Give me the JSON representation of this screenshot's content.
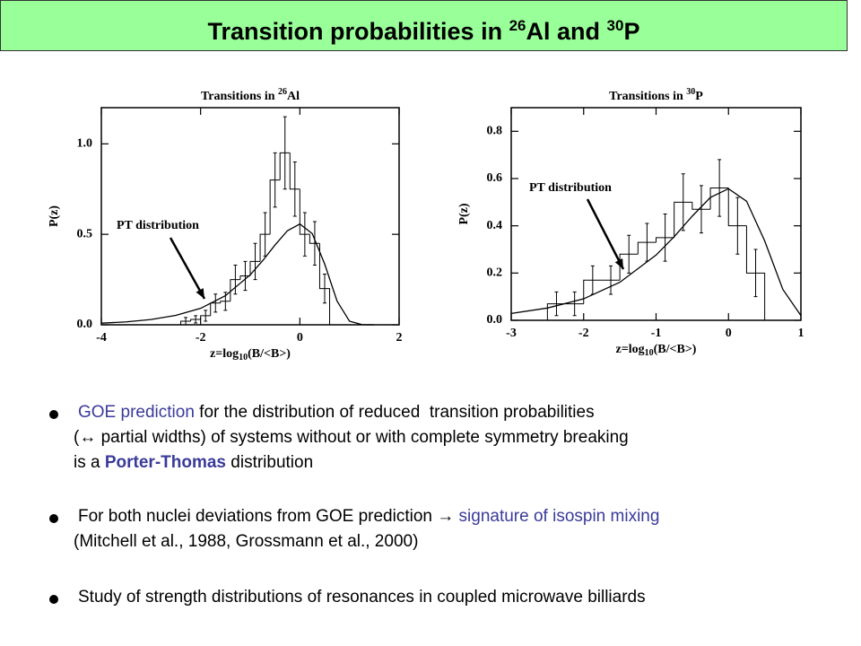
{
  "slide": {
    "title": [
      "Transition probabilities in ",
      "26",
      "Al and ",
      "30",
      "P"
    ],
    "bullets": [
      [
        [
          "GOE prediction",
          " for the distribution of reduced  transition probabilities"
        ],
        [
          "(↔ partial widths) of systems without or with complete symmetry breaking"
        ],
        [
          "is a ",
          "Porter-Thomas",
          " distribution"
        ]
      ],
      [
        [
          "For both nuclei deviations from GOE prediction → ",
          "signature of isospin mixing"
        ],
        [
          "(Mitchell et al., 1988, Grossmann et al., 2000)"
        ]
      ],
      [
        [
          "Study of strength distributions of resonances in coupled microwave billiards"
        ]
      ]
    ]
  },
  "chart_data": [
    {
      "type": "histogram",
      "title": "Transitions in ",
      "title_sup": "26",
      "title_suffix": "Al",
      "xlabel": "z=log",
      "xlabel_sub": "10",
      "xlabel_suffix": "(B/<B>)",
      "ylabel": "P(z)",
      "annotation": "PT distribution",
      "xlim": [
        -4,
        2
      ],
      "xticks": [
        -4,
        -2,
        0,
        2
      ],
      "ylim": [
        0,
        1.2
      ],
      "yticks": [
        {
          "value": 0,
          "label": "0.0"
        },
        {
          "value": 0.5,
          "label": "0.5"
        },
        {
          "value": 1,
          "label": "1.0"
        }
      ],
      "bins": [
        -2.4,
        -2.2,
        -2.0,
        -1.8,
        -1.6,
        -1.4,
        -1.2,
        -1.0,
        -0.8,
        -0.6,
        -0.4,
        -0.2,
        0,
        0.2,
        0.4,
        0.6
      ],
      "values": [
        0.02,
        0.03,
        0.05,
        0.12,
        0.13,
        0.25,
        0.27,
        0.35,
        0.5,
        0.8,
        0.95,
        0.75,
        0.5,
        0.45,
        0.2
      ],
      "errors": [
        0.02,
        0.02,
        0.03,
        0.05,
        0.05,
        0.08,
        0.08,
        0.1,
        0.12,
        0.15,
        0.2,
        0.15,
        0.12,
        0.12,
        0.08
      ],
      "curve_x": [
        -4,
        -3.5,
        -3,
        -2.5,
        -2,
        -1.5,
        -1,
        -0.75,
        -0.5,
        -0.25,
        0,
        0.25,
        0.5,
        0.75,
        1,
        1.25,
        1.5
      ],
      "curve_y": [
        0.009,
        0.016,
        0.029,
        0.052,
        0.091,
        0.161,
        0.276,
        0.354,
        0.441,
        0.52,
        0.557,
        0.504,
        0.336,
        0.131,
        0.02,
        0.001,
        0
      ]
    },
    {
      "type": "histogram",
      "title": "Transitions in ",
      "title_sup": "30",
      "title_suffix": "P",
      "xlabel": "z=log",
      "xlabel_sub": "10",
      "xlabel_suffix": "(B/<B>)",
      "ylabel": "P(z)",
      "annotation": "PT distribution",
      "xlim": [
        -3,
        1
      ],
      "xticks": [
        -3,
        -2,
        -1,
        0,
        1
      ],
      "ylim": [
        0,
        0.9
      ],
      "yticks": [
        {
          "value": 0,
          "label": "0.0"
        },
        {
          "value": 0.2,
          "label": "0.2"
        },
        {
          "value": 0.4,
          "label": "0.4"
        },
        {
          "value": 0.6,
          "label": "0.6"
        },
        {
          "value": 0.8,
          "label": "0.8"
        }
      ],
      "bins": [
        -2.5,
        -2.25,
        -2.0,
        -1.75,
        -1.5,
        -1.25,
        -1.0,
        -0.75,
        -0.5,
        -0.25,
        0,
        0.25,
        0.5
      ],
      "values": [
        0.07,
        0.07,
        0.17,
        0.17,
        0.28,
        0.33,
        0.35,
        0.5,
        0.47,
        0.56,
        0.4,
        0.2
      ],
      "errors": [
        0.05,
        0.05,
        0.06,
        0.06,
        0.08,
        0.08,
        0.1,
        0.12,
        0.1,
        0.12,
        0.12,
        0.1
      ],
      "curve_x": [
        -3,
        -2.5,
        -2,
        -1.5,
        -1,
        -0.75,
        -0.5,
        -0.25,
        0,
        0.25,
        0.5,
        0.75,
        1
      ],
      "curve_y": [
        0.029,
        0.052,
        0.091,
        0.161,
        0.276,
        0.354,
        0.441,
        0.52,
        0.557,
        0.504,
        0.336,
        0.131,
        0.02
      ]
    }
  ]
}
